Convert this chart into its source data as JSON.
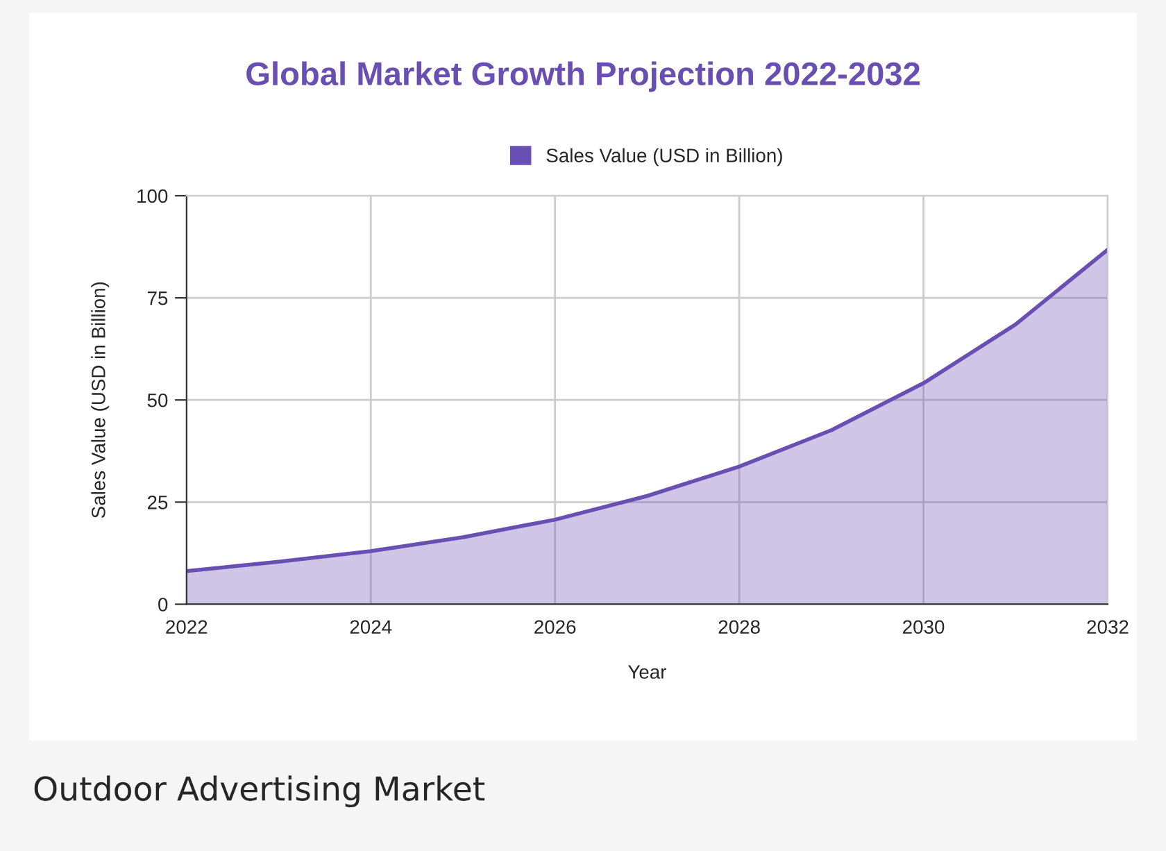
{
  "chart_data": {
    "type": "area",
    "title": "Global Market Growth Projection 2022-2032",
    "xlabel": "Year",
    "ylabel": "Sales Value (USD in Billion)",
    "x": [
      2022,
      2023,
      2024,
      2025,
      2026,
      2027,
      2028,
      2029,
      2030,
      2031,
      2032
    ],
    "series": [
      {
        "name": "Sales Value (USD in Billion)",
        "color": "#6a4fb3",
        "values": [
          8.1,
          10.4,
          13.0,
          16.4,
          20.7,
          26.5,
          33.7,
          42.6,
          54.1,
          68.5,
          86.8
        ]
      }
    ],
    "xlim": [
      2022,
      2032
    ],
    "xticks": [
      2022,
      2024,
      2026,
      2028,
      2030,
      2032
    ],
    "ylim": [
      0,
      100
    ],
    "yticks": [
      0,
      25,
      50,
      75,
      100
    ],
    "grid": true,
    "legend": "top",
    "annotations": [
      "Outdoor Advertising Market"
    ]
  }
}
